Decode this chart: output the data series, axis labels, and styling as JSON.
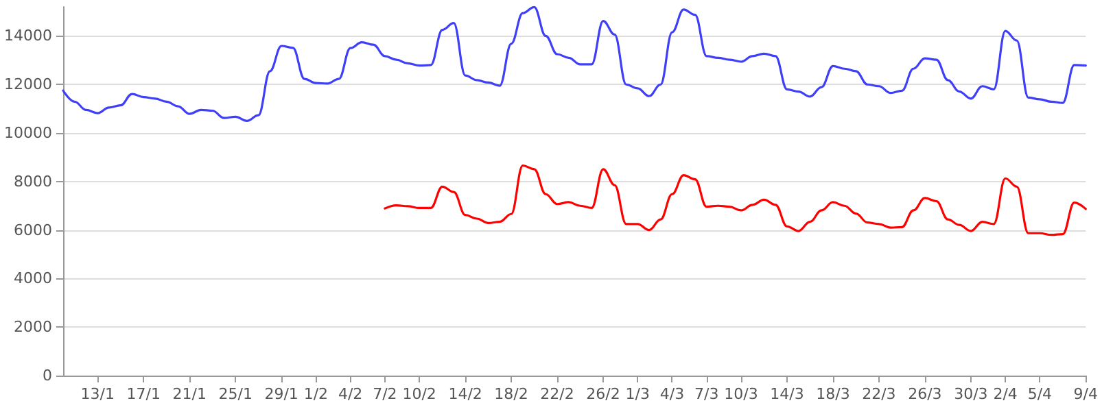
{
  "chart_data": {
    "type": "line",
    "x": [
      "--01-10",
      "--01-11",
      "--01-12",
      "--01-13",
      "--01-14",
      "--01-15",
      "--01-16",
      "--01-17",
      "--01-18",
      "--01-19",
      "--01-20",
      "--01-21",
      "--01-22",
      "--01-23",
      "--01-24",
      "--01-25",
      "--01-26",
      "--01-27",
      "--01-28",
      "--01-29",
      "--01-30",
      "--01-31",
      "--02-01",
      "--02-02",
      "--02-03",
      "--02-04",
      "--02-05",
      "--02-06",
      "--02-07",
      "--02-08",
      "--02-09",
      "--02-10",
      "--02-11",
      "--02-12",
      "--02-13",
      "--02-14",
      "--02-15",
      "--02-16",
      "--02-17",
      "--02-18",
      "--02-19",
      "--02-20",
      "--02-21",
      "--02-22",
      "--02-23",
      "--02-24",
      "--02-25",
      "--02-26",
      "--02-27",
      "--02-28",
      "--03-01",
      "--03-02",
      "--03-03",
      "--03-04",
      "--03-05",
      "--03-06",
      "--03-07",
      "--03-08",
      "--03-09",
      "--03-10",
      "--03-11",
      "--03-12",
      "--03-13",
      "--03-14",
      "--03-15",
      "--03-16",
      "--03-17",
      "--03-18",
      "--03-19",
      "--03-20",
      "--03-21",
      "--03-22",
      "--03-23",
      "--03-24",
      "--03-25",
      "--03-26",
      "--03-27",
      "--03-28",
      "--03-29",
      "--03-30",
      "--03-31",
      "--04-01",
      "--04-02",
      "--04-03",
      "--04-04",
      "--04-05",
      "--04-06",
      "--04-07",
      "--04-08",
      "--04-09"
    ],
    "series": [
      {
        "color": "#3f3ff7",
        "values": [
          11750,
          11290,
          10950,
          10820,
          11050,
          11140,
          11610,
          11480,
          11420,
          11290,
          11100,
          10790,
          10950,
          10920,
          10620,
          10670,
          10500,
          10730,
          12550,
          13590,
          13510,
          12230,
          12060,
          12040,
          12230,
          13500,
          13740,
          13640,
          13170,
          13020,
          12870,
          12780,
          12800,
          14250,
          14530,
          12370,
          12180,
          12080,
          11950,
          13680,
          14940,
          15190,
          14000,
          13250,
          13100,
          12830,
          12830,
          14620,
          14060,
          12000,
          11840,
          11520,
          12000,
          14150,
          15090,
          14870,
          13170,
          13100,
          13020,
          12940,
          13170,
          13270,
          13170,
          11800,
          11710,
          11500,
          11890,
          12760,
          12650,
          12550,
          12000,
          11930,
          11650,
          11740,
          12650,
          13080,
          13020,
          12180,
          11710,
          11420,
          11930,
          11800,
          14210,
          13810,
          11460,
          11390,
          11290,
          11240,
          12800,
          12780
        ]
      },
      {
        "color": "#ff0000",
        "values": [
          null,
          null,
          null,
          null,
          null,
          null,
          null,
          null,
          null,
          null,
          null,
          null,
          null,
          null,
          null,
          null,
          null,
          null,
          null,
          null,
          null,
          null,
          null,
          null,
          null,
          null,
          null,
          null,
          6890,
          7020,
          6980,
          6910,
          6910,
          7790,
          7570,
          6620,
          6470,
          6290,
          6340,
          6660,
          8660,
          8510,
          7480,
          7070,
          7150,
          7000,
          6910,
          8510,
          7850,
          6250,
          6250,
          6000,
          6440,
          7480,
          8260,
          8090,
          6960,
          7000,
          6960,
          6810,
          7040,
          7250,
          7040,
          6150,
          5960,
          6340,
          6810,
          7150,
          7000,
          6680,
          6310,
          6250,
          6100,
          6120,
          6810,
          7320,
          7190,
          6440,
          6210,
          5960,
          6340,
          6250,
          8130,
          7790,
          5870,
          5870,
          5800,
          5830,
          7130,
          6870
        ]
      }
    ],
    "xlim": [
      "--01-10",
      "--04-09"
    ],
    "xticks": [
      {
        "value": "--01-13",
        "label": "13/1"
      },
      {
        "value": "--01-17",
        "label": "17/1"
      },
      {
        "value": "--01-21",
        "label": "21/1"
      },
      {
        "value": "--01-25",
        "label": "25/1"
      },
      {
        "value": "--01-29",
        "label": "29/1"
      },
      {
        "value": "--02-01",
        "label": "1/2"
      },
      {
        "value": "--02-04",
        "label": "4/2"
      },
      {
        "value": "--02-07",
        "label": "7/2"
      },
      {
        "value": "--02-10",
        "label": "10/2"
      },
      {
        "value": "--02-14",
        "label": "14/2"
      },
      {
        "value": "--02-18",
        "label": "18/2"
      },
      {
        "value": "--02-22",
        "label": "22/2"
      },
      {
        "value": "--02-26",
        "label": "26/2"
      },
      {
        "value": "--03-01",
        "label": "1/3"
      },
      {
        "value": "--03-04",
        "label": "4/3"
      },
      {
        "value": "--03-07",
        "label": "7/3"
      },
      {
        "value": "--03-10",
        "label": "10/3"
      },
      {
        "value": "--03-14",
        "label": "14/3"
      },
      {
        "value": "--03-18",
        "label": "18/3"
      },
      {
        "value": "--03-22",
        "label": "22/3"
      },
      {
        "value": "--03-26",
        "label": "26/3"
      },
      {
        "value": "--03-30",
        "label": "30/3"
      },
      {
        "value": "--04-02",
        "label": "2/4"
      },
      {
        "value": "--04-05",
        "label": "5/4"
      },
      {
        "value": "--04-09",
        "label": "9/4"
      }
    ],
    "ylim": [
      0,
      15200
    ],
    "yticks": [
      0,
      2000,
      4000,
      6000,
      8000,
      10000,
      12000,
      14000
    ],
    "grid": "y",
    "marker": "none",
    "line_style": "solid"
  }
}
